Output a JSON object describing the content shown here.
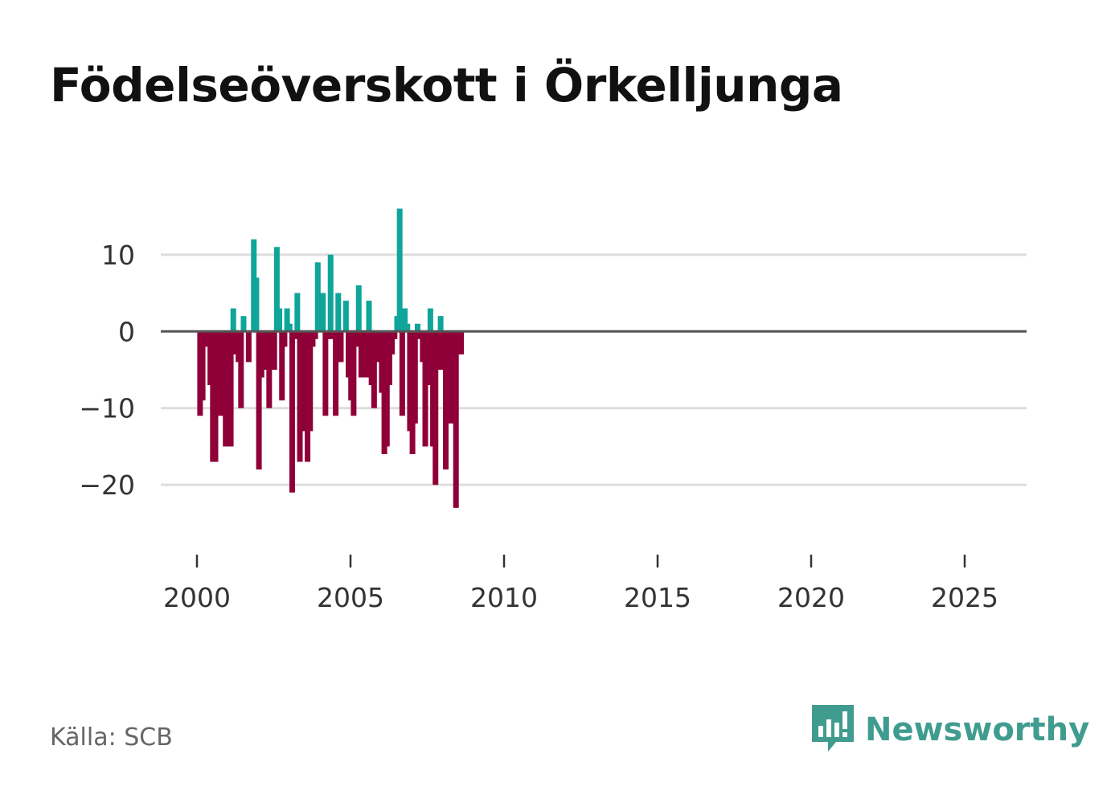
{
  "title": "Födelseöverskott i Örkelljunga",
  "source": "Källa: SCB",
  "brand": "Newsworthy",
  "colors": {
    "positive": "#0fa59a",
    "negative": "#8f0038",
    "grid": "#dddddd",
    "zero": "#555555",
    "brand": "#3f9c8f"
  },
  "chart_data": {
    "type": "bar",
    "title": "Födelseöverskott i Örkelljunga",
    "xlabel": "",
    "ylabel": "",
    "ylim": [
      -27,
      17
    ],
    "xlim": [
      1999.5,
      2027
    ],
    "y_ticks": [
      10,
      0,
      -10,
      -20
    ],
    "y_tick_labels": [
      "10",
      "0",
      "−10",
      "−20"
    ],
    "x_ticks": [
      2000,
      2005,
      2010,
      2015,
      2020,
      2025
    ],
    "x_tick_labels": [
      "2000",
      "2005",
      "2010",
      "2015",
      "2020",
      "2025"
    ],
    "frequency": "monthly",
    "start_period": "2000-01",
    "values": [
      -11,
      -9,
      -1,
      -2,
      -7,
      -17,
      -17,
      -10,
      -11,
      -7,
      -15,
      -7,
      -15,
      3,
      -3,
      -4,
      -10,
      2,
      0,
      -4,
      0,
      12,
      7,
      -18,
      -6,
      -5,
      -2,
      -10,
      -4,
      -5,
      11,
      3,
      -9,
      -2,
      3,
      1,
      -21,
      -1,
      5,
      -17,
      -8,
      -13,
      -17,
      -13,
      -2,
      -1,
      9,
      0,
      5,
      -11,
      -1,
      10,
      -1,
      -11,
      5,
      -4,
      0,
      4,
      -6,
      -9,
      -11,
      -2,
      6,
      -6,
      -4,
      -6,
      4,
      -7,
      -10,
      -4,
      -1,
      -8,
      -16,
      -15,
      -7,
      -3,
      -1,
      2,
      16,
      -11,
      3,
      1,
      -13,
      -16,
      -12,
      1,
      -1,
      -4,
      -15,
      -7,
      3,
      -15,
      -20,
      -5,
      2,
      -5,
      -18,
      -1,
      -12,
      -8,
      -23,
      -2,
      -3
    ]
  }
}
